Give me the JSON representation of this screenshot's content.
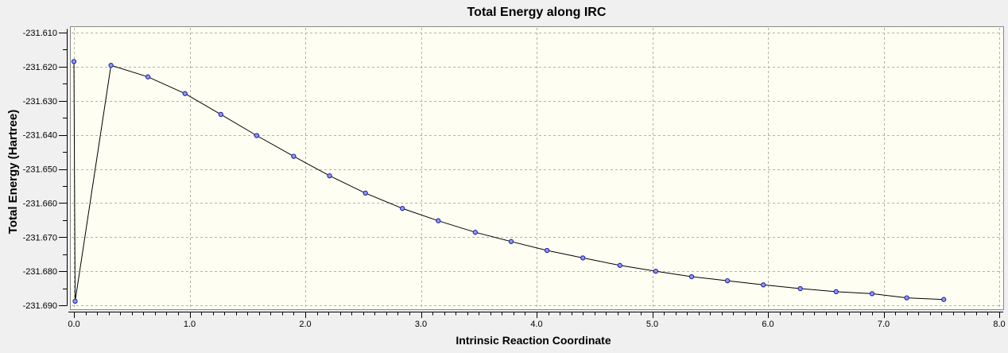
{
  "chart_data": {
    "type": "line",
    "title": "Total Energy along IRC",
    "xlabel": "Intrinsic Reaction Coordinate",
    "ylabel": "Total Energy (Hartree)",
    "xlim": [
      0.0,
      8.0
    ],
    "ylim": [
      -231.69,
      -231.61
    ],
    "x_major_ticks": [
      0,
      1,
      2,
      3,
      4,
      5,
      6,
      7,
      8
    ],
    "x_tick_labels": [
      "0.0",
      "1.0",
      "2.0",
      "3.0",
      "4.0",
      "5.0",
      "6.0",
      "7.0",
      "8.0"
    ],
    "x_minor_step": 0.1,
    "y_major_ticks": [
      -231.61,
      -231.62,
      -231.63,
      -231.64,
      -231.65,
      -231.66,
      -231.67,
      -231.68,
      -231.69
    ],
    "y_tick_labels": [
      "-231.610",
      "-231.620",
      "-231.630",
      "-231.640",
      "-231.650",
      "-231.660",
      "-231.670",
      "-231.680",
      "-231.690"
    ],
    "y_minor_step": 0.005,
    "grid": {
      "show": true,
      "style": "dashed",
      "on": "major-ticks"
    },
    "legend": {
      "show": false
    },
    "series": [
      {
        "name": "Total Energy",
        "draw": "line+markers",
        "line_color": "#000000",
        "marker": "circle",
        "marker_fill": "#8d9cea",
        "marker_edge": "#1f1fb4",
        "points": [
          [
            0.0,
            -231.6185
          ],
          [
            0.01,
            -231.6888
          ],
          [
            0.32,
            -231.6196
          ],
          [
            0.64,
            -231.623
          ],
          [
            0.96,
            -231.6279
          ],
          [
            1.27,
            -231.634
          ],
          [
            1.58,
            -231.6402
          ],
          [
            1.9,
            -231.6463
          ],
          [
            2.21,
            -231.652
          ],
          [
            2.52,
            -231.6571
          ],
          [
            2.84,
            -231.6616
          ],
          [
            3.15,
            -231.6652
          ],
          [
            3.47,
            -231.6686
          ],
          [
            3.78,
            -231.6713
          ],
          [
            4.09,
            -231.6739
          ],
          [
            4.4,
            -231.6761
          ],
          [
            4.72,
            -231.6783
          ],
          [
            5.03,
            -231.68
          ],
          [
            5.34,
            -231.6816
          ],
          [
            5.65,
            -231.6828
          ],
          [
            5.96,
            -231.684
          ],
          [
            6.28,
            -231.6851
          ],
          [
            6.59,
            -231.686
          ],
          [
            6.9,
            -231.6866
          ],
          [
            7.2,
            -231.6878
          ],
          [
            7.52,
            -231.6883
          ]
        ]
      }
    ],
    "colors": {
      "outer_background": "#f0f0f0",
      "plot_background": "#fffef2",
      "frame_border": "#8a8a8a",
      "frame_highlight": "#fafaf6",
      "gridline": "#b2b2aa",
      "axis": "#000000",
      "text": "#000000"
    }
  }
}
